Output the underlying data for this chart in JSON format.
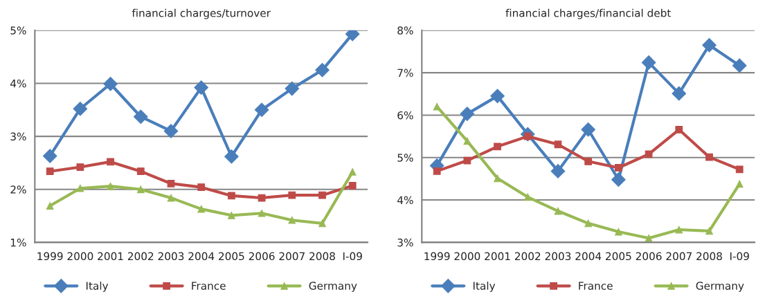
{
  "chart_data": [
    {
      "type": "line",
      "title": "financial charges/turnover",
      "categories": [
        "1999",
        "2000",
        "2001",
        "2002",
        "2003",
        "2004",
        "2005",
        "2006",
        "2007",
        "2008",
        "I-09"
      ],
      "series": [
        {
          "name": "Italy",
          "color": "#4a7ebb",
          "marker": "diamond",
          "values": [
            2.63,
            3.52,
            3.99,
            3.37,
            3.1,
            3.92,
            2.62,
            3.5,
            3.9,
            4.25,
            4.93
          ]
        },
        {
          "name": "France",
          "color": "#be4b48",
          "marker": "square",
          "values": [
            2.34,
            2.42,
            2.52,
            2.34,
            2.11,
            2.04,
            1.88,
            1.84,
            1.89,
            1.89,
            2.07
          ]
        },
        {
          "name": "Germany",
          "color": "#98b954",
          "marker": "triangle",
          "values": [
            1.69,
            2.02,
            2.06,
            2.0,
            1.84,
            1.63,
            1.51,
            1.55,
            1.42,
            1.36,
            2.33
          ]
        }
      ],
      "ylim": [
        1,
        5
      ],
      "yticks": [
        {
          "value": 1,
          "label": "1%"
        },
        {
          "value": 2,
          "label": "2%"
        },
        {
          "value": 3,
          "label": "3%"
        },
        {
          "value": 4,
          "label": "4%"
        },
        {
          "value": 5,
          "label": "5%"
        }
      ],
      "grid": "y",
      "legend": "bottom",
      "line_style": "solid"
    },
    {
      "type": "line",
      "title": "financial charges/financial debt",
      "categories": [
        "1999",
        "2000",
        "2001",
        "2002",
        "2003",
        "2004",
        "2005",
        "2006",
        "2007",
        "2008",
        "I-09"
      ],
      "series": [
        {
          "name": "Italy",
          "color": "#4a7ebb",
          "marker": "diamond",
          "values": [
            4.81,
            6.03,
            6.45,
            5.55,
            4.68,
            5.66,
            4.48,
            7.24,
            6.51,
            7.65,
            7.17
          ]
        },
        {
          "name": "France",
          "color": "#be4b48",
          "marker": "square",
          "values": [
            4.68,
            4.93,
            5.26,
            5.5,
            5.31,
            4.91,
            4.76,
            5.08,
            5.66,
            5.01,
            4.72
          ]
        },
        {
          "name": "Germany",
          "color": "#98b954",
          "marker": "triangle",
          "values": [
            6.2,
            5.39,
            4.51,
            4.07,
            3.74,
            3.45,
            3.25,
            3.1,
            3.3,
            3.27,
            4.38
          ]
        }
      ],
      "ylim": [
        3,
        8
      ],
      "yticks": [
        {
          "value": 3,
          "label": "3%"
        },
        {
          "value": 4,
          "label": "4%"
        },
        {
          "value": 5,
          "label": "5%"
        },
        {
          "value": 6,
          "label": "6%"
        },
        {
          "value": 7,
          "label": "7%"
        },
        {
          "value": 8,
          "label": "8%"
        }
      ],
      "grid": "y",
      "legend": "bottom",
      "line_style": "solid"
    }
  ]
}
